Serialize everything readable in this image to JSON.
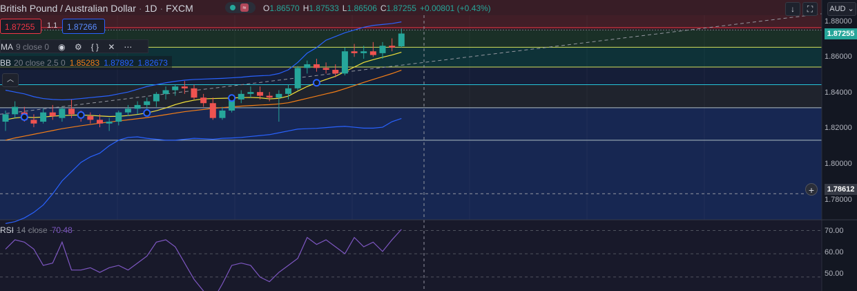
{
  "header": {
    "symbol": "British Pound / Australian Dollar",
    "interval": "1D",
    "exchange": "FXCM",
    "ohlc": {
      "o_label": "O",
      "o_value": "1.86570",
      "h_label": "H",
      "h_value": "1.87533",
      "l_label": "L",
      "l_value": "1.86506",
      "c_label": "C",
      "c_value": "1.87255",
      "change": "+0.00801 (+0.43%)"
    },
    "status_icon": "market-status-icon"
  },
  "trade": {
    "sell_price": "1.87255",
    "quantity": "1.1",
    "buy_price": "1.87266"
  },
  "indicators": {
    "ma": {
      "name": "MA",
      "params": "9 close 0"
    },
    "bb": {
      "name": "BB",
      "params": "20 close 2.5 0",
      "basis": "1.85283",
      "upper": "1.87892",
      "lower": "1.82673"
    },
    "rsi": {
      "name": "RSI",
      "params": "14 close",
      "value": "70.48"
    }
  },
  "price_axis": {
    "currency": "AUD",
    "labels": [
      "1.88000",
      "1.86000",
      "1.84000",
      "1.82000",
      "1.80000",
      "1.78000"
    ],
    "current_price": "1.87255",
    "crosshair_price": "1.78612"
  },
  "rsi_axis": {
    "labels": [
      "70.00",
      "60.00",
      "50.00"
    ]
  },
  "colors": {
    "background": "#131722",
    "up": "#26a69a",
    "down": "#ef5350",
    "ma": "#f3e23a",
    "bb_basis": "#f57f17",
    "bb_band": "#2962ff",
    "rsi": "#7e57c2"
  },
  "chart_data": {
    "type": "candlestick",
    "series": [
      {
        "name": "OHLC",
        "candles": [
          [
            1.825,
            1.831,
            1.82,
            1.829
          ],
          [
            1.829,
            1.836,
            1.827,
            1.833
          ],
          [
            1.83,
            1.833,
            1.825,
            1.826
          ],
          [
            1.826,
            1.829,
            1.822,
            1.824
          ],
          [
            1.825,
            1.832,
            1.824,
            1.83
          ],
          [
            1.83,
            1.834,
            1.826,
            1.828
          ],
          [
            1.827,
            1.833,
            1.825,
            1.832
          ],
          [
            1.832,
            1.837,
            1.827,
            1.829
          ],
          [
            1.829,
            1.831,
            1.825,
            1.828
          ],
          [
            1.828,
            1.83,
            1.824,
            1.826
          ],
          [
            1.826,
            1.829,
            1.822,
            1.824
          ],
          [
            1.824,
            1.827,
            1.82,
            1.825
          ],
          [
            1.825,
            1.831,
            1.823,
            1.83
          ],
          [
            1.83,
            1.834,
            1.828,
            1.832
          ],
          [
            1.832,
            1.836,
            1.829,
            1.834
          ],
          [
            1.834,
            1.838,
            1.83,
            1.836
          ],
          [
            1.836,
            1.841,
            1.833,
            1.84
          ],
          [
            1.84,
            1.844,
            1.837,
            1.842
          ],
          [
            1.842,
            1.845,
            1.839,
            1.844
          ],
          [
            1.844,
            1.847,
            1.84,
            1.843
          ],
          [
            1.843,
            1.845,
            1.837,
            1.838
          ],
          [
            1.838,
            1.84,
            1.833,
            1.835
          ],
          [
            1.835,
            1.838,
            1.826,
            1.827
          ],
          [
            1.827,
            1.833,
            1.826,
            1.831
          ],
          [
            1.831,
            1.838,
            1.83,
            1.837
          ],
          [
            1.837,
            1.842,
            1.835,
            1.84
          ],
          [
            1.84,
            1.844,
            1.838,
            1.841
          ],
          [
            1.841,
            1.844,
            1.837,
            1.839
          ],
          [
            1.839,
            1.841,
            1.836,
            1.838
          ],
          [
            1.838,
            1.842,
            1.825,
            1.84
          ],
          [
            1.84,
            1.845,
            1.837,
            1.843
          ],
          [
            1.843,
            1.855,
            1.842,
            1.854
          ],
          [
            1.854,
            1.858,
            1.851,
            1.856
          ],
          [
            1.856,
            1.859,
            1.852,
            1.854
          ],
          [
            1.854,
            1.857,
            1.851,
            1.853
          ],
          [
            1.853,
            1.856,
            1.849,
            1.851
          ],
          [
            1.851,
            1.865,
            1.85,
            1.863
          ],
          [
            1.863,
            1.867,
            1.86,
            1.862
          ],
          [
            1.862,
            1.866,
            1.859,
            1.863
          ],
          [
            1.863,
            1.868,
            1.86,
            1.861
          ],
          [
            1.862,
            1.868,
            1.859,
            1.866
          ],
          [
            1.866,
            1.87,
            1.863,
            1.865
          ],
          [
            1.8657,
            1.8753,
            1.8651,
            1.8726
          ]
        ]
      },
      {
        "name": "MA 9",
        "values": [
          1.826,
          1.827,
          1.8275,
          1.8272,
          1.8275,
          1.828,
          1.8283,
          1.8285,
          1.8286,
          1.8284,
          1.8281,
          1.8278,
          1.8279,
          1.8283,
          1.8289,
          1.8297,
          1.8309,
          1.8324,
          1.8342,
          1.8356,
          1.8366,
          1.8373,
          1.8375,
          1.8376,
          1.8378,
          1.838,
          1.8381,
          1.8379,
          1.8373,
          1.8376,
          1.8388,
          1.8415,
          1.844,
          1.846,
          1.8478,
          1.8495,
          1.852,
          1.8545,
          1.857,
          1.8585,
          1.8598,
          1.861,
          1.8625
        ]
      },
      {
        "name": "BB basis",
        "values": [
          1.815,
          1.8162,
          1.8172,
          1.8182,
          1.8192,
          1.8202,
          1.8212,
          1.822,
          1.8228,
          1.8235,
          1.8242,
          1.8248,
          1.8254,
          1.826,
          1.8266,
          1.8272,
          1.828,
          1.8288,
          1.8296,
          1.8304,
          1.831,
          1.8316,
          1.8322,
          1.8326,
          1.833,
          1.8334,
          1.8337,
          1.834,
          1.8342,
          1.8346,
          1.8352,
          1.8364,
          1.8376,
          1.8388,
          1.84,
          1.8412,
          1.8428,
          1.8445,
          1.8462,
          1.8478,
          1.8494,
          1.851,
          1.8528
        ]
      },
      {
        "name": "BB upper",
        "values": [
          1.842,
          1.841,
          1.84,
          1.8385,
          1.8375,
          1.837,
          1.8368,
          1.837,
          1.8375,
          1.838,
          1.8385,
          1.839,
          1.84,
          1.841,
          1.8425,
          1.844,
          1.845,
          1.846,
          1.8468,
          1.8474,
          1.8478,
          1.848,
          1.8482,
          1.8484,
          1.8487,
          1.849,
          1.8495,
          1.8498,
          1.85,
          1.851,
          1.853,
          1.857,
          1.862,
          1.865,
          1.869,
          1.871,
          1.873,
          1.8745,
          1.876,
          1.877,
          1.8775,
          1.878,
          1.8789
        ]
      },
      {
        "name": "BB lower",
        "values": [
          1.77,
          1.771,
          1.773,
          1.776,
          1.78,
          1.786,
          1.793,
          1.798,
          1.803,
          1.806,
          1.808,
          1.812,
          1.815,
          1.8165,
          1.8168,
          1.816,
          1.8155,
          1.815,
          1.815,
          1.8155,
          1.816,
          1.8158,
          1.8155,
          1.816,
          1.8162,
          1.8165,
          1.817,
          1.8175,
          1.818,
          1.819,
          1.82,
          1.821,
          1.8212,
          1.8214,
          1.8218,
          1.8222,
          1.8225,
          1.822,
          1.8215,
          1.8215,
          1.822,
          1.825,
          1.8267
        ]
      },
      {
        "name": "RSI 14",
        "values": [
          62,
          66,
          65,
          62,
          55,
          56,
          65,
          53,
          53,
          54,
          52,
          54,
          55,
          53,
          56,
          59,
          65,
          66,
          63,
          56,
          49,
          44,
          40,
          47,
          55,
          56,
          55,
          50,
          48,
          52,
          55,
          58,
          67,
          64,
          66,
          63,
          60,
          67,
          63,
          65,
          61,
          66,
          70.48
        ]
      }
    ],
    "markers_at_index": [
      2,
      8,
      15,
      24,
      33
    ],
    "horizontal_levels": [
      1.8758,
      1.8745,
      1.8652,
      1.8545,
      1.845,
      1.8325,
      1.815,
      1.7861
    ],
    "y_range": [
      1.772,
      1.8825
    ],
    "rsi_range": [
      44,
      74
    ]
  }
}
